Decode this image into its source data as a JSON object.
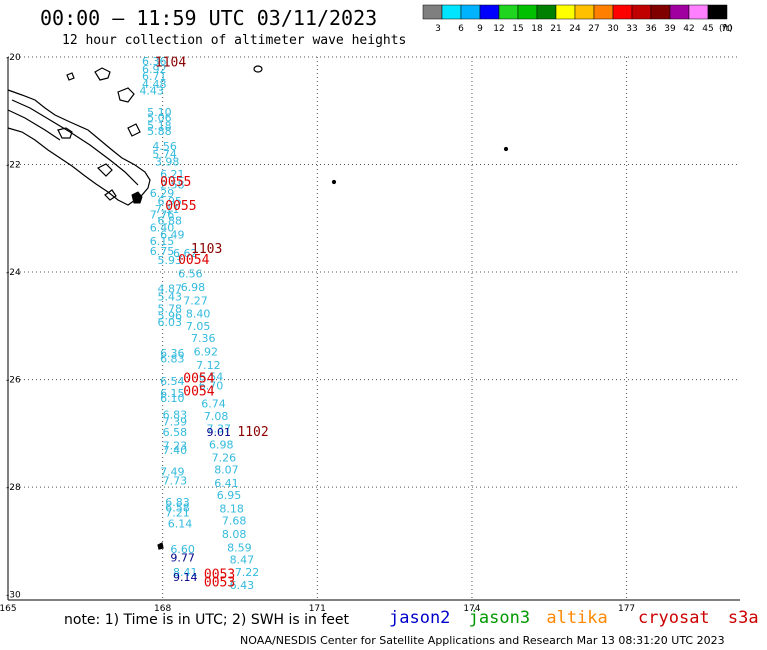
{
  "title": "00:00 – 11:59 UTC 03/11/2023",
  "subtitle": "12 hour collection of altimeter wave heights",
  "colorbar": {
    "unit_label": "(ft)",
    "ticks": [
      "3",
      "6",
      "9",
      "12",
      "15",
      "18",
      "21",
      "24",
      "27",
      "30",
      "33",
      "36",
      "39",
      "42",
      "45",
      "70"
    ],
    "colors": [
      "#7f7f7f",
      "#00e5ff",
      "#00b3ff",
      "#0000ff",
      "#1fd51f",
      "#00c000",
      "#008000",
      "#ffff00",
      "#ffc000",
      "#ff8000",
      "#ff0000",
      "#c00000",
      "#800000",
      "#a000a0",
      "#ff80ff",
      "#000000"
    ]
  },
  "map": {
    "lon_labels": [
      "165",
      "168",
      "171",
      "174",
      "177"
    ],
    "lat_labels": [
      "-20",
      "-22",
      "-24",
      "-26",
      "-28",
      "-30"
    ]
  },
  "colors": {
    "light": "#33bbdd",
    "dark": "#00008b",
    "red": "#e00000",
    "darkred": "#8b0000",
    "grid": "#333333"
  },
  "wave_labels": [
    {
      "lon": 167.6,
      "lat": -20.15,
      "text": "6.36",
      "c": "light"
    },
    {
      "lon": 167.6,
      "lat": -20.3,
      "text": "6.92",
      "c": "light"
    },
    {
      "lon": 167.6,
      "lat": -20.43,
      "text": "6.71",
      "c": "light"
    },
    {
      "lon": 167.6,
      "lat": -20.58,
      "text": "4.48",
      "c": "light"
    },
    {
      "lon": 167.55,
      "lat": -20.7,
      "text": "4.43",
      "c": "light"
    },
    {
      "lon": 167.7,
      "lat": -21.1,
      "text": "5.10",
      "c": "light"
    },
    {
      "lon": 167.7,
      "lat": -21.2,
      "text": "5.06",
      "c": "light"
    },
    {
      "lon": 167.7,
      "lat": -21.35,
      "text": "5.18",
      "c": "light"
    },
    {
      "lon": 167.7,
      "lat": -21.45,
      "text": "5.88",
      "c": "light"
    },
    {
      "lon": 167.8,
      "lat": -21.73,
      "text": "4.56",
      "c": "light"
    },
    {
      "lon": 167.8,
      "lat": -21.88,
      "text": "5.74",
      "c": "light"
    },
    {
      "lon": 167.85,
      "lat": -22.02,
      "text": "3.98",
      "c": "light"
    },
    {
      "lon": 167.95,
      "lat": -22.25,
      "text": "6.21",
      "c": "light"
    },
    {
      "lon": 167.95,
      "lat": -22.45,
      "text": "2.58",
      "c": "light"
    },
    {
      "lon": 167.75,
      "lat": -22.6,
      "text": "6.29",
      "c": "light"
    },
    {
      "lon": 167.9,
      "lat": -22.75,
      "text": "6.95",
      "c": "light"
    },
    {
      "lon": 167.85,
      "lat": -22.9,
      "text": "7.11",
      "c": "light"
    },
    {
      "lon": 167.75,
      "lat": -23.0,
      "text": "7.76",
      "c": "light"
    },
    {
      "lon": 167.9,
      "lat": -23.12,
      "text": "6.88",
      "c": "light"
    },
    {
      "lon": 167.75,
      "lat": -23.25,
      "text": "6.40",
      "c": "light"
    },
    {
      "lon": 167.95,
      "lat": -23.38,
      "text": "6.49",
      "c": "light"
    },
    {
      "lon": 167.75,
      "lat": -23.5,
      "text": "6.15",
      "c": "light"
    },
    {
      "lon": 167.75,
      "lat": -23.68,
      "text": "6.75",
      "c": "light"
    },
    {
      "lon": 167.9,
      "lat": -23.85,
      "text": "5.93",
      "c": "light"
    },
    {
      "lon": 168.2,
      "lat": -23.72,
      "text": "6.62",
      "c": "light"
    },
    {
      "lon": 168.3,
      "lat": -24.1,
      "text": "6.56",
      "c": "light"
    },
    {
      "lon": 168.35,
      "lat": -24.35,
      "text": "6.98",
      "c": "light"
    },
    {
      "lon": 167.9,
      "lat": -24.38,
      "text": "4.87",
      "c": "light"
    },
    {
      "lon": 167.9,
      "lat": -24.53,
      "text": "5.43",
      "c": "light"
    },
    {
      "lon": 168.4,
      "lat": -24.6,
      "text": "7.27",
      "c": "light"
    },
    {
      "lon": 167.9,
      "lat": -24.75,
      "text": "5.78",
      "c": "light"
    },
    {
      "lon": 168.45,
      "lat": -24.85,
      "text": "8.40",
      "c": "light"
    },
    {
      "lon": 167.9,
      "lat": -24.88,
      "text": "5.96",
      "c": "light"
    },
    {
      "lon": 167.9,
      "lat": -25.0,
      "text": "6.03",
      "c": "light"
    },
    {
      "lon": 168.45,
      "lat": -25.08,
      "text": "7.05",
      "c": "light"
    },
    {
      "lon": 168.55,
      "lat": -25.3,
      "text": "7.36",
      "c": "light"
    },
    {
      "lon": 168.6,
      "lat": -25.55,
      "text": "6.92",
      "c": "light"
    },
    {
      "lon": 167.95,
      "lat": -25.58,
      "text": "6.36",
      "c": "light"
    },
    {
      "lon": 167.95,
      "lat": -25.68,
      "text": "6.83",
      "c": "light"
    },
    {
      "lon": 168.65,
      "lat": -25.8,
      "text": "7.12",
      "c": "light"
    },
    {
      "lon": 168.7,
      "lat": -26.02,
      "text": "6.54",
      "c": "light"
    },
    {
      "lon": 167.95,
      "lat": -26.1,
      "text": "6.54",
      "c": "light"
    },
    {
      "lon": 168.7,
      "lat": -26.18,
      "text": "6.70",
      "c": "light"
    },
    {
      "lon": 167.95,
      "lat": -26.32,
      "text": "6.15",
      "c": "light"
    },
    {
      "lon": 167.95,
      "lat": -26.42,
      "text": "6.10",
      "c": "light"
    },
    {
      "lon": 168.75,
      "lat": -26.52,
      "text": "6.74",
      "c": "light"
    },
    {
      "lon": 168.0,
      "lat": -26.72,
      "text": "6.83",
      "c": "light"
    },
    {
      "lon": 168.8,
      "lat": -26.75,
      "text": "7.08",
      "c": "light"
    },
    {
      "lon": 168.0,
      "lat": -26.85,
      "text": "7.39",
      "c": "light"
    },
    {
      "lon": 168.85,
      "lat": -26.98,
      "text": "7.37",
      "c": "light"
    },
    {
      "lon": 168.0,
      "lat": -27.05,
      "text": "6.58",
      "c": "light"
    },
    {
      "lon": 168.85,
      "lat": -27.05,
      "text": "9.01",
      "c": "dark"
    },
    {
      "lon": 168.9,
      "lat": -27.28,
      "text": "6.98",
      "c": "light"
    },
    {
      "lon": 168.0,
      "lat": -27.3,
      "text": "7.23",
      "c": "light"
    },
    {
      "lon": 168.0,
      "lat": -27.38,
      "text": "7.40",
      "c": "light"
    },
    {
      "lon": 168.95,
      "lat": -27.52,
      "text": "7.26",
      "c": "light"
    },
    {
      "lon": 169.0,
      "lat": -27.75,
      "text": "8.07",
      "c": "light"
    },
    {
      "lon": 167.95,
      "lat": -27.78,
      "text": "7.49",
      "c": "light"
    },
    {
      "lon": 168.0,
      "lat": -27.95,
      "text": "7.73",
      "c": "light"
    },
    {
      "lon": 169.0,
      "lat": -28.0,
      "text": "6.41",
      "c": "light"
    },
    {
      "lon": 169.05,
      "lat": -28.22,
      "text": "6.95",
      "c": "light"
    },
    {
      "lon": 168.05,
      "lat": -28.35,
      "text": "6.83",
      "c": "light"
    },
    {
      "lon": 168.05,
      "lat": -28.45,
      "text": "6.58",
      "c": "light"
    },
    {
      "lon": 169.1,
      "lat": -28.47,
      "text": "8.18",
      "c": "light"
    },
    {
      "lon": 168.05,
      "lat": -28.55,
      "text": "7.21",
      "c": "light"
    },
    {
      "lon": 169.15,
      "lat": -28.7,
      "text": "7.68",
      "c": "light"
    },
    {
      "lon": 168.1,
      "lat": -28.75,
      "text": "6.14",
      "c": "light"
    },
    {
      "lon": 169.15,
      "lat": -28.95,
      "text": "8.08",
      "c": "light"
    },
    {
      "lon": 169.25,
      "lat": -29.2,
      "text": "8.59",
      "c": "light"
    },
    {
      "lon": 168.15,
      "lat": -29.23,
      "text": "6.60",
      "c": "light"
    },
    {
      "lon": 168.15,
      "lat": -29.38,
      "text": "9.77",
      "c": "dark"
    },
    {
      "lon": 169.3,
      "lat": -29.42,
      "text": "8.47",
      "c": "light"
    },
    {
      "lon": 169.4,
      "lat": -29.65,
      "text": "7.22",
      "c": "light"
    },
    {
      "lon": 168.2,
      "lat": -29.65,
      "text": "8.41",
      "c": "light"
    },
    {
      "lon": 168.2,
      "lat": -29.75,
      "text": "9.14",
      "c": "dark"
    },
    {
      "lon": 169.3,
      "lat": -29.9,
      "text": "6.43",
      "c": "light"
    }
  ],
  "time_labels": [
    {
      "lon": 167.85,
      "lat": -20.18,
      "text": "1104",
      "c": "darkred"
    },
    {
      "lon": 167.95,
      "lat": -22.4,
      "text": "0055",
      "c": "red"
    },
    {
      "lon": 168.05,
      "lat": -22.85,
      "text": "0055",
      "c": "red"
    },
    {
      "lon": 168.55,
      "lat": -23.65,
      "text": "1103",
      "c": "darkred"
    },
    {
      "lon": 168.3,
      "lat": -23.85,
      "text": "0054",
      "c": "red"
    },
    {
      "lon": 168.4,
      "lat": -26.05,
      "text": "0054",
      "c": "red"
    },
    {
      "lon": 168.4,
      "lat": -26.3,
      "text": "0054",
      "c": "red"
    },
    {
      "lon": 169.45,
      "lat": -27.05,
      "text": "1102",
      "c": "darkred"
    },
    {
      "lon": 168.8,
      "lat": -29.7,
      "text": "0053",
      "c": "red"
    },
    {
      "lon": 168.8,
      "lat": -29.85,
      "text": "0053",
      "c": "red"
    }
  ],
  "note": "note: 1) Time is in UTC; 2) SWH is in feet",
  "legend": [
    {
      "label": "jason2",
      "color": "#0000cc"
    },
    {
      "label": "jason3",
      "color": "#009900"
    },
    {
      "label": "altika",
      "color": "#ff8800"
    },
    {
      "label": "cryosat",
      "color": "#cc0000"
    },
    {
      "label": "s3a",
      "color": "#cc0000"
    }
  ],
  "credit": "NOAA/NESDIS Center for Satellite Applications and Research   Mar 13 08:31:20 UTC 2023"
}
